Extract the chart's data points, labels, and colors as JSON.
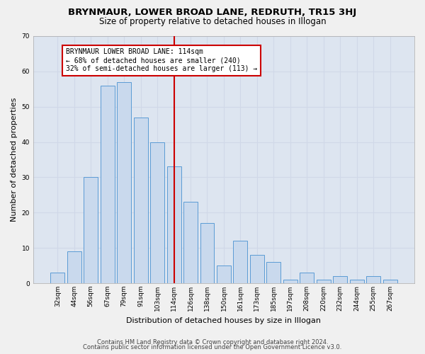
{
  "title": "BRYNMAUR, LOWER BROAD LANE, REDRUTH, TR15 3HJ",
  "subtitle": "Size of property relative to detached houses in Illogan",
  "xlabel": "Distribution of detached houses by size in Illogan",
  "ylabel": "Number of detached properties",
  "categories": [
    "32sqm",
    "44sqm",
    "56sqm",
    "67sqm",
    "79sqm",
    "91sqm",
    "103sqm",
    "114sqm",
    "126sqm",
    "138sqm",
    "150sqm",
    "161sqm",
    "173sqm",
    "185sqm",
    "197sqm",
    "208sqm",
    "220sqm",
    "232sqm",
    "244sqm",
    "255sqm",
    "267sqm"
  ],
  "values": [
    3,
    9,
    30,
    56,
    57,
    47,
    40,
    33,
    23,
    17,
    5,
    12,
    8,
    6,
    1,
    3,
    1,
    2,
    1,
    2,
    1
  ],
  "bar_color": "#c9d9ed",
  "bar_edge_color": "#5b9bd5",
  "highlight_index": 7,
  "highlight_line_color": "#cc0000",
  "annotation_line1": "BRYNMAUR LOWER BROAD LANE: 114sqm",
  "annotation_line2": "← 68% of detached houses are smaller (240)",
  "annotation_line3": "32% of semi-detached houses are larger (113) →",
  "annotation_box_color": "#ffffff",
  "annotation_box_edge_color": "#cc0000",
  "ylim": [
    0,
    70
  ],
  "yticks": [
    0,
    10,
    20,
    30,
    40,
    50,
    60,
    70
  ],
  "grid_color": "#d0d8e8",
  "bg_color": "#dde5f0",
  "fig_bg_color": "#f0f0f0",
  "footer_line1": "Contains HM Land Registry data © Crown copyright and database right 2024.",
  "footer_line2": "Contains public sector information licensed under the Open Government Licence v3.0.",
  "title_fontsize": 9.5,
  "subtitle_fontsize": 8.5,
  "tick_fontsize": 6.5,
  "ylabel_fontsize": 8,
  "xlabel_fontsize": 8,
  "annotation_fontsize": 7,
  "footer_fontsize": 6
}
